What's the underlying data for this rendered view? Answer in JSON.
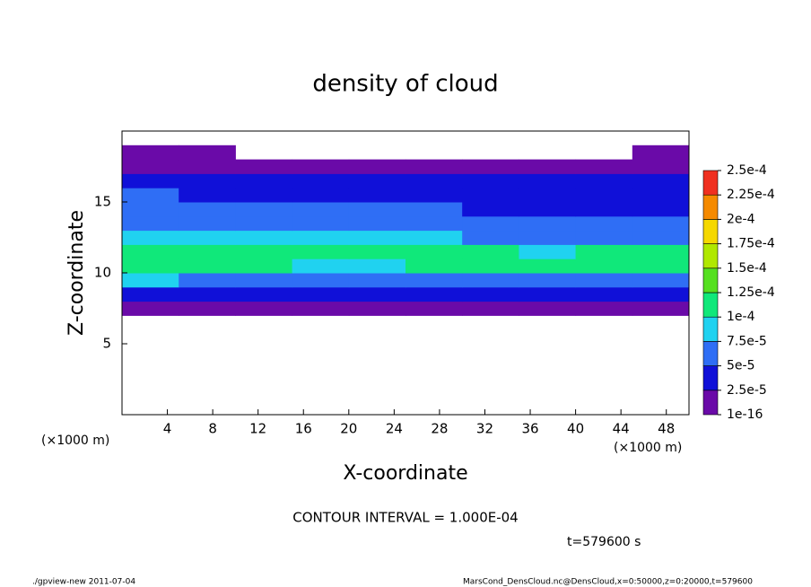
{
  "chart_data": {
    "type": "heatmap",
    "title": "density of cloud",
    "xlabel": "X-coordinate",
    "ylabel": "Z-coordinate",
    "x_unit": "(×1000 m)",
    "y_unit": "(×1000 m)",
    "annotation": "CONTOUR INTERVAL = 1.000E-04",
    "time_label": "t=579600 s",
    "footer_left": "./gpview-new  2011-07-04",
    "footer_right": "MarsCond_DensCloud.nc@DensCloud,x=0:50000,z=0:20000,t=579600",
    "xlim": [
      0,
      50
    ],
    "ylim": [
      0,
      20
    ],
    "xticks": [
      4,
      8,
      12,
      16,
      20,
      24,
      28,
      32,
      36,
      40,
      44,
      48
    ],
    "yticks": [
      5,
      10,
      15
    ],
    "x_edges": [
      0,
      5,
      10,
      15,
      20,
      25,
      30,
      35,
      40,
      45,
      50
    ],
    "z_edges": [
      7,
      8,
      9,
      10,
      11,
      12,
      13,
      14,
      15,
      16,
      17,
      18,
      19
    ],
    "values": [
      [
        1e-05,
        1e-05,
        1e-05,
        1e-05,
        1e-05,
        1e-05,
        1e-05,
        1e-05,
        1e-05,
        1e-05
      ],
      [
        3e-05,
        3e-05,
        3.5e-05,
        3e-05,
        3e-05,
        3e-05,
        2.8e-05,
        3e-05,
        3e-05,
        3e-05
      ],
      [
        8e-05,
        7e-05,
        7e-05,
        6.5e-05,
        7e-05,
        6e-05,
        6e-05,
        6e-05,
        6.5e-05,
        7e-05
      ],
      [
        0.000105,
        0.0001,
        0.000102,
        9e-05,
        9.5e-05,
        0.0001,
        0.000105,
        0.000102,
        0.000105,
        0.000108
      ],
      [
        0.000108,
        0.000105,
        0.000105,
        0.0001,
        0.000105,
        0.000102,
        0.000105,
        9e-05,
        0.0001,
        0.000105
      ],
      [
        9e-05,
        9e-05,
        9.5e-05,
        8.5e-05,
        8e-05,
        8e-05,
        6e-05,
        5.5e-05,
        6e-05,
        6e-05
      ],
      [
        7e-05,
        7e-05,
        7e-05,
        6e-05,
        6e-05,
        6e-05,
        5e-05,
        5e-05,
        5e-05,
        5e-05
      ],
      [
        6e-05,
        6e-05,
        5.5e-05,
        5e-05,
        5e-05,
        5e-05,
        4.5e-05,
        4.5e-05,
        4.5e-05,
        4.5e-05
      ],
      [
        5e-05,
        4.5e-05,
        4.5e-05,
        4e-05,
        4e-05,
        4e-05,
        4e-05,
        4e-05,
        4e-05,
        4e-05
      ],
      [
        3e-05,
        3e-05,
        3e-05,
        3e-05,
        3e-05,
        3e-05,
        3e-05,
        3e-05,
        3e-05,
        3e-05
      ],
      [
        1e-05,
        1e-05,
        1e-05,
        1e-05,
        1e-05,
        1e-05,
        1e-05,
        1e-05,
        1e-05,
        1e-05
      ],
      [
        1e-05,
        1e-05,
        null,
        null,
        null,
        null,
        null,
        null,
        null,
        1e-05
      ]
    ],
    "colorbar_ticks": [
      1e-16,
      {
        "value": 2.5e-05,
        "label": "2.5e-5"
      },
      {
        "value": 5e-05,
        "label": "5e-5"
      },
      {
        "value": 7.5e-05,
        "label": "7.5e-5"
      },
      {
        "value": 0.0001,
        "label": "1e-4"
      },
      {
        "value": 0.000125,
        "label": "1.25e-4"
      },
      {
        "value": 0.00015,
        "label": "1.5e-4"
      },
      {
        "value": 0.000175,
        "label": "1.75e-4"
      },
      {
        "value": 0.0002,
        "label": "2e-4"
      },
      {
        "value": 0.000225,
        "label": "2.25e-4"
      },
      {
        "value": 0.00025,
        "label": "2.5e-4"
      }
    ],
    "colors": [
      "#6a0aa8",
      "#1010d8",
      "#2f6ef5",
      "#20d2f0",
      "#10e87a",
      "#55e020",
      "#b0e800",
      "#f5d800",
      "#f58a00",
      "#f03020"
    ]
  }
}
